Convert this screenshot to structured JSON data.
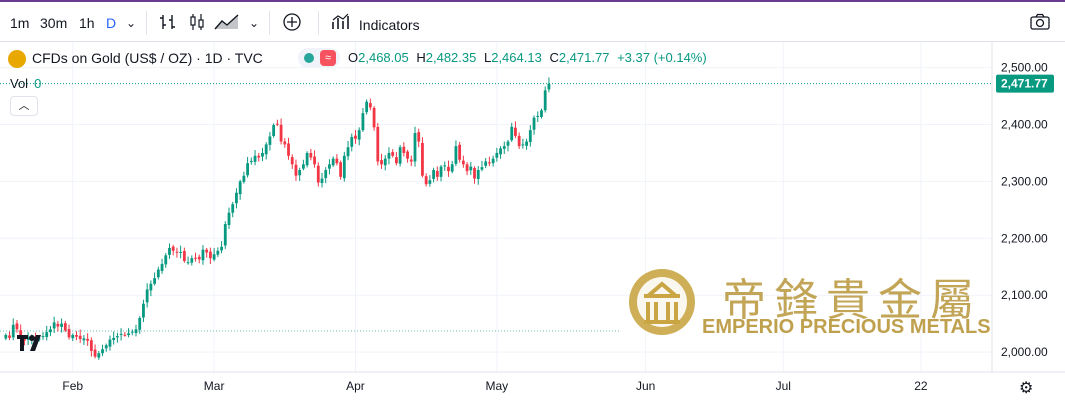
{
  "toolbar": {
    "intervals": [
      "1m",
      "30m",
      "1h",
      "D"
    ],
    "active_interval": "D",
    "indicators_label": "Indicators",
    "icons": [
      "bar-chart-icon",
      "candles-icon",
      "area-chart-icon",
      "chevron-down-icon",
      "add-circle-icon",
      "indicators-icon",
      "camera-icon"
    ]
  },
  "legend": {
    "symbol": "CFDs on Gold (US$ / OZ) · 1D · TVC",
    "o_label": "O",
    "o_value": "2,468.05",
    "h_label": "H",
    "h_value": "2,482.35",
    "l_label": "L",
    "l_value": "2,464.13",
    "c_label": "C",
    "c_value": "2,471.77",
    "change": "+3.37 (+0.14%)",
    "vol_label": "Vol",
    "vol_value": "0"
  },
  "watermark": {
    "chinese": "帝鋒貴金屬",
    "english": "EMPERIO PRECIOUS METALS"
  },
  "colors": {
    "up": "#089981",
    "down": "#f23645",
    "last_price_line": "#089981",
    "accent": "#2962ff",
    "watermark": "#b8963a"
  },
  "chart_data": {
    "type": "candlestick",
    "title": "CFDs on Gold (US$ / OZ)",
    "y_ticks": [
      "2,500.00",
      "2,400.00",
      "2,300.00",
      "2,200.00",
      "2,100.00",
      "2,000.00"
    ],
    "y_tick_values": [
      2500,
      2400,
      2300,
      2200,
      2100,
      2000
    ],
    "ylim": [
      1965,
      2545
    ],
    "x_ticks": [
      "Feb",
      "Mar",
      "Apr",
      "May",
      "Jun",
      "Jul",
      "22"
    ],
    "x_tick_index": [
      18,
      56,
      94,
      132,
      172,
      209,
      246
    ],
    "last_price": 2471.77,
    "last_price_label": "2,471.77",
    "grid": true,
    "closes": [
      2030,
      2025,
      2048,
      2040,
      2025,
      2020,
      2026,
      2027,
      2022,
      2024,
      2028,
      2035,
      2040,
      2052,
      2045,
      2050,
      2038,
      2026,
      2030,
      2027,
      2023,
      2024,
      2020,
      2002,
      1992,
      1998,
      2005,
      2012,
      2022,
      2025,
      2028,
      2032,
      2030,
      2033,
      2036,
      2040,
      2060,
      2085,
      2110,
      2120,
      2130,
      2145,
      2155,
      2170,
      2183,
      2178,
      2175,
      2176,
      2160,
      2158,
      2165,
      2165,
      2163,
      2180,
      2175,
      2165,
      2172,
      2178,
      2185,
      2225,
      2245,
      2260,
      2280,
      2300,
      2310,
      2332,
      2336,
      2345,
      2342,
      2350,
      2365,
      2379,
      2399,
      2401,
      2370,
      2365,
      2345,
      2330,
      2310,
      2320,
      2330,
      2350,
      2342,
      2330,
      2298,
      2305,
      2320,
      2330,
      2340,
      2332,
      2308,
      2345,
      2360,
      2378,
      2375,
      2390,
      2420,
      2440,
      2430,
      2395,
      2335,
      2330,
      2340,
      2350,
      2345,
      2332,
      2360,
      2350,
      2340,
      2335,
      2385,
      2370,
      2310,
      2295,
      2302,
      2320,
      2308,
      2326,
      2328,
      2318,
      2330,
      2362,
      2338,
      2330,
      2318,
      2326,
      2305,
      2320,
      2325,
      2335,
      2332,
      2340,
      2350,
      2358,
      2362,
      2370,
      2396,
      2380,
      2362,
      2365,
      2370,
      2390,
      2412,
      2415,
      2425,
      2460,
      2471.77
    ]
  }
}
